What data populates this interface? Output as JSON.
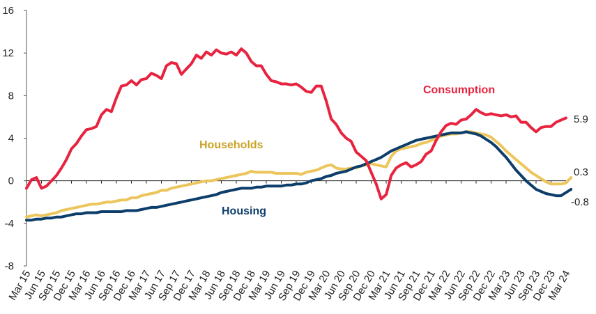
{
  "chart_data": {
    "type": "line",
    "ylim": [
      -8,
      16
    ],
    "yticks": [
      "-8",
      "-4",
      "0",
      "4",
      "8",
      "12",
      "16"
    ],
    "xlabels": [
      "Mar 15",
      "Jun 15",
      "Sep 15",
      "Dec 15",
      "Mar 16",
      "Jun 16",
      "Sep 16",
      "Dec 16",
      "Mar 17",
      "Jun 17",
      "Sep 17",
      "Dec 17",
      "Mar 18",
      "Jun 18",
      "Sep 18",
      "Dec 18",
      "Mar 19",
      "Jun 19",
      "Sep 19",
      "Dec 19",
      "Mar 20",
      "Jun 20",
      "Sep 20",
      "Dec 20",
      "Mar 21",
      "Jun 21",
      "Sep 21",
      "Dec 21",
      "Mar 22",
      "Jun 22",
      "Sep 22",
      "Dec 22",
      "Mar 23",
      "Jun 23",
      "Sep 23",
      "Dec 23",
      "Mar 24"
    ],
    "colors": {
      "Consumption": "#e8233f",
      "Households": "#ecc55c",
      "Housing": "#0d3e6b"
    },
    "series": [
      {
        "name": "Consumption",
        "label_color": "#e8233f",
        "end_value": "5.9",
        "values": [
          -0.7,
          0.1,
          0.3,
          -0.7,
          -0.5,
          0,
          0.5,
          1.2,
          2.0,
          3.0,
          3.5,
          4.2,
          4.8,
          4.9,
          5.1,
          6.2,
          6.7,
          6.5,
          7.8,
          8.9,
          9.0,
          9.4,
          9.0,
          9.5,
          9.6,
          10.1,
          9.9,
          9.6,
          10.8,
          11.1,
          11.0,
          10.0,
          10.5,
          11.0,
          11.8,
          11.5,
          12.1,
          11.8,
          12.3,
          12.0,
          11.9,
          12.1,
          11.8,
          12.4,
          12.0,
          11.2,
          10.8,
          10.8,
          10.0,
          9.4,
          9.3,
          9.1,
          9.1,
          9.0,
          9.1,
          8.8,
          8.4,
          8.3,
          8.9,
          8.9,
          7.5,
          5.8,
          5.3,
          4.5,
          4.0,
          3.7,
          2.7,
          2.3,
          1.9,
          0.8,
          -0.3,
          -1.7,
          -1.3,
          0.5,
          1.2,
          1.5,
          1.7,
          1.3,
          1.5,
          1.8,
          2.5,
          2.8,
          3.8,
          4.6,
          5.2,
          5.4,
          5.3,
          5.7,
          5.8,
          6.2,
          6.7,
          6.4,
          6.2,
          6.3,
          6.2,
          6.1,
          6.2,
          6.0,
          6.1,
          5.5,
          5.5,
          5.0,
          4.6,
          5.0,
          5.1,
          5.1,
          5.5,
          5.7,
          5.9
        ]
      },
      {
        "name": "Households",
        "label_color": "#c9a227",
        "end_value": "0.3",
        "values": [
          -3.4,
          -3.3,
          -3.2,
          -3.3,
          -3.2,
          -3.1,
          -3.0,
          -2.8,
          -2.7,
          -2.6,
          -2.5,
          -2.4,
          -2.3,
          -2.2,
          -2.2,
          -2.1,
          -2.0,
          -2.0,
          -1.9,
          -1.8,
          -1.8,
          -1.6,
          -1.6,
          -1.4,
          -1.3,
          -1.2,
          -1.1,
          -0.9,
          -0.9,
          -0.7,
          -0.6,
          -0.5,
          -0.4,
          -0.3,
          -0.2,
          -0.1,
          0.0,
          0.0,
          0.1,
          0.2,
          0.3,
          0.4,
          0.5,
          0.6,
          0.7,
          0.9,
          0.8,
          0.8,
          0.8,
          0.8,
          0.7,
          0.7,
          0.7,
          0.7,
          0.7,
          0.6,
          0.8,
          0.9,
          1.0,
          1.2,
          1.4,
          1.5,
          1.2,
          1.1,
          1.1,
          1.2,
          1.2,
          1.4,
          1.5,
          1.6,
          1.5,
          1.4,
          1.3,
          2.3,
          2.8,
          3.0,
          3.1,
          3.2,
          3.3,
          3.5,
          3.6,
          3.8,
          4.0,
          4.2,
          4.3,
          4.4,
          4.4,
          4.5,
          4.6,
          4.6,
          4.5,
          4.4,
          4.3,
          4.1,
          3.7,
          3.3,
          2.8,
          2.4,
          2.0,
          1.6,
          1.2,
          0.8,
          0.5,
          0.2,
          -0.1,
          -0.3,
          -0.3,
          -0.3,
          -0.2,
          0.3
        ]
      },
      {
        "name": "Housing",
        "label_color": "#0d3e6b",
        "end_value": "-0.8",
        "values": [
          -3.7,
          -3.7,
          -3.6,
          -3.6,
          -3.5,
          -3.5,
          -3.4,
          -3.4,
          -3.3,
          -3.2,
          -3.1,
          -3.1,
          -3.0,
          -3.0,
          -3.0,
          -2.9,
          -2.9,
          -2.9,
          -2.9,
          -2.9,
          -2.8,
          -2.8,
          -2.8,
          -2.7,
          -2.6,
          -2.5,
          -2.5,
          -2.4,
          -2.3,
          -2.2,
          -2.1,
          -2.0,
          -1.9,
          -1.8,
          -1.7,
          -1.6,
          -1.5,
          -1.4,
          -1.3,
          -1.1,
          -1.0,
          -0.9,
          -0.8,
          -0.7,
          -0.7,
          -0.7,
          -0.6,
          -0.6,
          -0.5,
          -0.5,
          -0.5,
          -0.5,
          -0.4,
          -0.4,
          -0.3,
          -0.3,
          -0.2,
          0.0,
          0.1,
          0.2,
          0.4,
          0.5,
          0.7,
          0.8,
          0.9,
          1.1,
          1.3,
          1.4,
          1.6,
          1.8,
          2.0,
          2.2,
          2.5,
          2.8,
          3.0,
          3.2,
          3.4,
          3.6,
          3.8,
          3.9,
          4.0,
          4.1,
          4.2,
          4.3,
          4.4,
          4.5,
          4.5,
          4.5,
          4.6,
          4.5,
          4.4,
          4.2,
          3.9,
          3.6,
          3.2,
          2.7,
          2.2,
          1.6,
          1.0,
          0.5,
          0.0,
          -0.4,
          -0.8,
          -1.0,
          -1.2,
          -1.3,
          -1.4,
          -1.4,
          -1.1,
          -0.8
        ]
      }
    ]
  }
}
